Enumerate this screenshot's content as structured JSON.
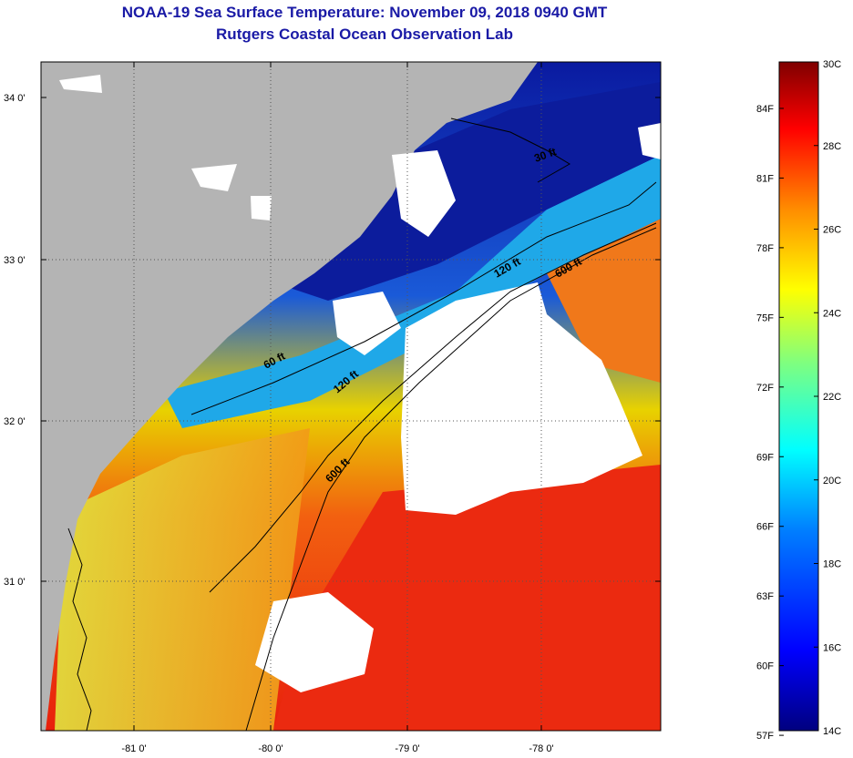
{
  "title_line1": "NOAA-19 Sea Surface Temperature:  November 09, 2018 0940 GMT",
  "title_line2": "Rutgers Coastal Ocean Observation Lab",
  "lat_labels": [
    "34 0'",
    "33 0'",
    "32 0'",
    "31 0'"
  ],
  "lon_labels": [
    "-81 0'",
    "-80 0'",
    "-79 0'",
    "-78 0'"
  ],
  "contour_labels": [
    "30 ft",
    "120 ft",
    "600 ft",
    "60 ft",
    "120 ft",
    "600 ft"
  ],
  "colorbar": {
    "fahrenheit": [
      "84F",
      "81F",
      "78F",
      "75F",
      "72F",
      "69F",
      "66F",
      "63F",
      "60F",
      "57F"
    ],
    "celsius": [
      "30C",
      "28C",
      "26C",
      "24C",
      "22C",
      "20C",
      "18C",
      "16C",
      "14C"
    ],
    "stops": [
      "#7f0000",
      "#ff0000",
      "#ff8c00",
      "#ffff00",
      "#7fff7f",
      "#00ffff",
      "#007fff",
      "#0000ff",
      "#00007f"
    ]
  },
  "colors": {
    "land": "#b4b4b4",
    "cloud": "#ffffff",
    "cold": "#0a1aa0",
    "warm": "#f02a10"
  }
}
